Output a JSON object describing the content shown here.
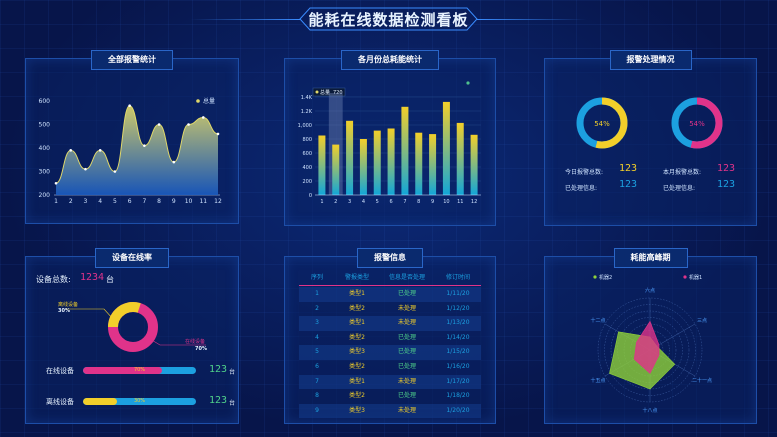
{
  "title": "能耗在线数据检测看板",
  "alarm_panel": {
    "title": "全部报警统计",
    "legend": "总量",
    "chart_data": {
      "type": "area",
      "x": [
        1,
        2,
        3,
        4,
        5,
        6,
        7,
        8,
        9,
        10,
        11,
        12
      ],
      "values": [
        250,
        390,
        310,
        390,
        300,
        580,
        410,
        500,
        340,
        500,
        530,
        460
      ],
      "ylim": [
        200,
        600
      ],
      "yticks": [
        200,
        300,
        400,
        500,
        600
      ],
      "color": "#e0d86a"
    }
  },
  "monthly_panel": {
    "title": "各月份总耗能统计",
    "tooltip_label": "总量",
    "tooltip_value": "720",
    "chart_data": {
      "type": "bar",
      "categories": [
        "1",
        "2",
        "3",
        "4",
        "5",
        "6",
        "7",
        "8",
        "9",
        "10",
        "11",
        "12"
      ],
      "values": [
        850,
        720,
        1060,
        800,
        920,
        950,
        1260,
        890,
        870,
        1330,
        1030,
        860
      ],
      "ylim": [
        0,
        1400
      ],
      "yticks": [
        {
          "v": 0,
          "label": "0"
        },
        {
          "v": 200,
          "label": "200"
        },
        {
          "v": 400,
          "label": "400"
        },
        {
          "v": 600,
          "label": "600"
        },
        {
          "v": 800,
          "label": "800"
        },
        {
          "v": 1000,
          "label": "1,000"
        },
        {
          "v": 1200,
          "label": "1.2K"
        },
        {
          "v": 1400,
          "label": "1.4K"
        }
      ]
    }
  },
  "process_panel": {
    "title": "报警处理情况",
    "donut1": {
      "percent": 54,
      "label": "54%"
    },
    "donut2": {
      "percent": 54,
      "label": "54%"
    },
    "today_label": "今日报警总数:",
    "today_value": "123",
    "today_done_label": "已处理信息:",
    "today_done_value": "123",
    "month_label": "本月报警总数:",
    "month_value": "123",
    "month_done_label": "已处理信息:",
    "month_done_value": "123"
  },
  "device_panel": {
    "title": "设备在线率",
    "total_label": "设备总数:",
    "total_value": "1234",
    "unit": "台",
    "offline_label": "离线设备",
    "offline_pct": "30%",
    "online_label": "在线设备",
    "online_pct": "70%",
    "online_bar_label": "在线设备",
    "online_bar_pct": "70%",
    "online_fraction": 0.7,
    "online_count": "123",
    "offline_bar_label": "离线设备",
    "offline_bar_pct": "30%",
    "offline_fraction": 0.3,
    "offline_count": "123"
  },
  "alert_table": {
    "title": "报警信息",
    "headers": [
      "序列",
      "警报类型",
      "信息是否处理",
      "修订时间"
    ],
    "rows": [
      [
        "1",
        "类型1",
        "已处理",
        "1/11/20"
      ],
      [
        "2",
        "类型2",
        "未处理",
        "1/12/20"
      ],
      [
        "3",
        "类型1",
        "未处理",
        "1/13/20"
      ],
      [
        "4",
        "类型2",
        "已处理",
        "1/14/20"
      ],
      [
        "5",
        "类型3",
        "已处理",
        "1/15/20"
      ],
      [
        "6",
        "类型2",
        "已处理",
        "1/16/20"
      ],
      [
        "7",
        "类型1",
        "未处理",
        "1/17/20"
      ],
      [
        "8",
        "类型2",
        "已处理",
        "1/18/20"
      ],
      [
        "9",
        "类型3",
        "未处理",
        "1/20/20"
      ]
    ]
  },
  "peak_panel": {
    "title": "耗能高峰期",
    "legend1": "机器2",
    "legend2": "机器1",
    "axis_labels": [
      "六点",
      "三点",
      "二十一点",
      "十八点",
      "十五点",
      "十二点"
    ],
    "chart_data": {
      "type": "radar",
      "series": [
        {
          "name": "机器2",
          "color": "#8fd13a",
          "values": [
            0.25,
            0.15,
            0.55,
            0.75,
            0.9,
            0.7
          ]
        },
        {
          "name": "机器1",
          "color": "#e0338a",
          "values": [
            0.55,
            0.2,
            0.2,
            0.45,
            0.35,
            0.3
          ]
        }
      ]
    }
  }
}
